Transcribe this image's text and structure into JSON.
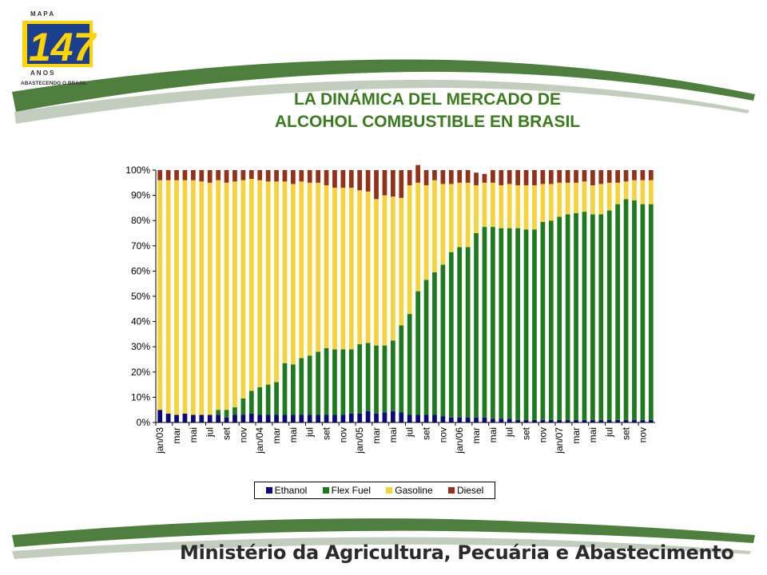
{
  "logo": {
    "top_text": "M A P A",
    "number": "147",
    "bottom_text": "A N O S",
    "tagline": "ABASTECENDO O BRASIL"
  },
  "title": {
    "line1": "LA DINÁMICA DEL MERCADO DE",
    "line2": "ALCOHOL COMBUSTIBLE EN BRASIL"
  },
  "footer": {
    "text": "Ministério da Agricultura, Pecuária e Abastecimento"
  },
  "colors": {
    "title": "#3b7a1f",
    "swoosh": "#4e7f3e",
    "ethanol": "#0a0a7a",
    "flexfuel": "#1f7a1f",
    "gasoline": "#f5d33c",
    "diesel": "#93321a"
  },
  "chart_data": {
    "type": "bar",
    "stacked": true,
    "ylim": [
      0,
      100
    ],
    "y_ticks": [
      "0%",
      "10%",
      "20%",
      "30%",
      "40%",
      "50%",
      "60%",
      "70%",
      "80%",
      "90%",
      "100%"
    ],
    "x_tick_labels": [
      "jan/03",
      "mar",
      "mai",
      "jul",
      "set",
      "nov",
      "jan/04",
      "mar",
      "mai",
      "jul",
      "set",
      "nov",
      "jan/05",
      "mar",
      "mai",
      "jul",
      "set",
      "nov",
      "jan/06",
      "mar",
      "mai",
      "jul",
      "set",
      "nov",
      "jan/07",
      "mar",
      "mai",
      "jul",
      "set",
      "nov"
    ],
    "legend": {
      "placement": "bottom",
      "entries": [
        "Ethanol",
        "Flex Fuel",
        "Gasoline",
        "Diesel"
      ]
    },
    "series": [
      {
        "name": "Ethanol",
        "color": "#0a0a7a",
        "values": [
          5,
          3.5,
          3,
          3.5,
          3,
          3,
          3,
          3,
          2,
          3,
          3,
          3.5,
          3,
          3,
          3,
          3,
          3,
          3,
          3,
          3,
          3,
          3,
          3,
          3.5,
          3.5,
          4.5,
          3.5,
          4,
          4.5,
          4,
          3,
          3,
          3,
          3,
          2.5,
          2,
          2,
          2,
          2,
          2,
          1.5,
          1.5,
          1.5,
          1,
          1,
          1,
          1,
          1,
          1,
          1,
          1,
          1,
          1,
          1,
          1,
          1,
          1,
          1,
          1,
          1
        ]
      },
      {
        "name": "Flex Fuel",
        "color": "#1f7a1f",
        "values": [
          0,
          0,
          0,
          0,
          0,
          0,
          0,
          2,
          3,
          3,
          6.5,
          9,
          11,
          12,
          13,
          20.5,
          20,
          22.5,
          23.5,
          25,
          26.5,
          26,
          26,
          25.5,
          27.5,
          27,
          27,
          26.5,
          28,
          34.5,
          40,
          49,
          53.5,
          56.5,
          60,
          65.5,
          67.5,
          67.5,
          73,
          75.5,
          76,
          75.5,
          75.5,
          76,
          75.5,
          75.5,
          78.5,
          79,
          80.5,
          81.5,
          82,
          82.5,
          81.5,
          81.5,
          83,
          85.5,
          87.5,
          87,
          85.5,
          85.5
        ]
      },
      {
        "name": "Gasoline",
        "color": "#f5d33c",
        "values": [
          91,
          92.5,
          93,
          92.5,
          93,
          92.5,
          92,
          91,
          90,
          89.5,
          86.5,
          84,
          82,
          80.5,
          79.5,
          72,
          71.5,
          70,
          68.5,
          67,
          64.5,
          64,
          64,
          64,
          61,
          60,
          58,
          59.5,
          57,
          50.5,
          51,
          43,
          37.5,
          36.5,
          32,
          27,
          25.5,
          25.5,
          19,
          17.5,
          17.5,
          17,
          17.5,
          17,
          17.5,
          17.5,
          15,
          14.5,
          13.5,
          12.5,
          12,
          12,
          11.5,
          12,
          11,
          8.5,
          7,
          8,
          9.5,
          9.5
        ]
      },
      {
        "name": "Diesel",
        "color": "#93321a",
        "values": [
          4,
          4,
          4,
          4,
          4,
          4.5,
          5,
          4,
          5,
          4.5,
          4,
          3.5,
          4,
          4.5,
          4.5,
          4.5,
          5.5,
          4.5,
          5,
          5,
          6,
          7,
          7,
          7,
          8,
          8.5,
          11.5,
          10,
          10.5,
          11,
          6,
          7,
          6,
          4,
          5.5,
          5.5,
          5,
          5,
          5,
          3.5,
          5,
          6,
          5.5,
          6,
          6,
          6,
          5.5,
          5.5,
          5,
          5,
          5,
          4.5,
          6,
          5.5,
          5,
          5,
          4.5,
          4,
          4,
          4
        ]
      }
    ]
  }
}
